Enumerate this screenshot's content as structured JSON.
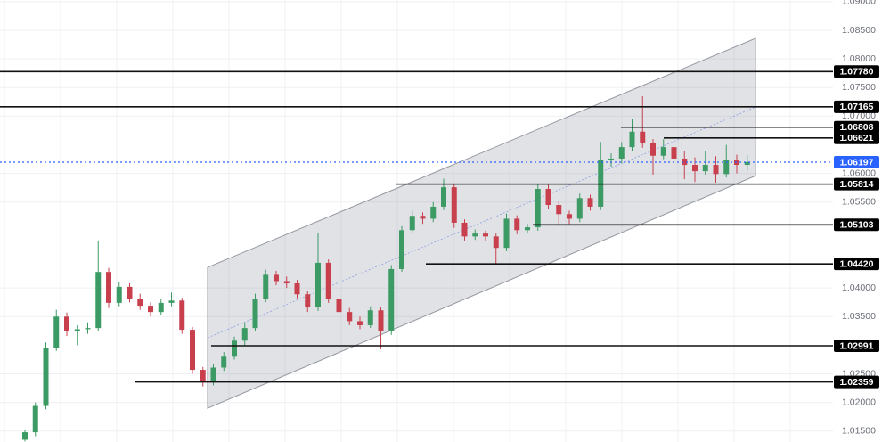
{
  "chart_data": {
    "type": "candlestick",
    "ylim": [
      1.0131,
      1.0903
    ],
    "yticks": [
      {
        "value": 1.09,
        "label": "1.09000"
      },
      {
        "value": 1.085,
        "label": "1.08500"
      },
      {
        "value": 1.08,
        "label": "1.08000"
      },
      {
        "value": 1.075,
        "label": "1.07500"
      },
      {
        "value": 1.07,
        "label": "1.07000"
      },
      {
        "value": 1.06,
        "label": "1.06000"
      },
      {
        "value": 1.055,
        "label": "1.05500"
      },
      {
        "value": 1.04,
        "label": "1.04000"
      },
      {
        "value": 1.035,
        "label": "1.03500"
      },
      {
        "value": 1.025,
        "label": "1.02500"
      },
      {
        "value": 1.02,
        "label": "1.02000"
      },
      {
        "value": 1.015,
        "label": "1.01500"
      }
    ],
    "grid": true,
    "up_color": "#3c9a64",
    "down_color": "#c8404e",
    "ohlc": [
      [
        1.0135,
        1.0152,
        1.0132,
        1.0148
      ],
      [
        1.0148,
        1.02,
        1.0141,
        1.0194
      ],
      [
        1.0194,
        1.0305,
        1.0188,
        1.0296
      ],
      [
        1.0296,
        1.0362,
        1.029,
        1.035
      ],
      [
        1.035,
        1.0357,
        1.0316,
        1.0324
      ],
      [
        1.0324,
        1.0335,
        1.03,
        1.0328
      ],
      [
        1.0328,
        1.034,
        1.032,
        1.033
      ],
      [
        1.033,
        1.0483,
        1.0325,
        1.0428
      ],
      [
        1.0428,
        1.0435,
        1.0365,
        1.0374
      ],
      [
        1.0374,
        1.041,
        1.0368,
        1.0402
      ],
      [
        1.0402,
        1.0408,
        1.0375,
        1.0381
      ],
      [
        1.0381,
        1.039,
        1.0362,
        1.0369
      ],
      [
        1.0369,
        1.0375,
        1.035,
        1.0358
      ],
      [
        1.0358,
        1.038,
        1.0352,
        1.0374
      ],
      [
        1.0374,
        1.0392,
        1.0368,
        1.0378
      ],
      [
        1.0378,
        1.0383,
        1.032,
        1.0327
      ],
      [
        1.0327,
        1.0332,
        1.025,
        1.0257
      ],
      [
        1.0257,
        1.0262,
        1.0228,
        1.0236
      ],
      [
        1.0236,
        1.0268,
        1.023,
        1.0261
      ],
      [
        1.0261,
        1.0288,
        1.0255,
        1.028
      ],
      [
        1.028,
        1.0315,
        1.0275,
        1.0308
      ],
      [
        1.0308,
        1.0338,
        1.03,
        1.033
      ],
      [
        1.033,
        1.039,
        1.0325,
        1.0381
      ],
      [
        1.0381,
        1.0432,
        1.0375,
        1.0423
      ],
      [
        1.0423,
        1.043,
        1.0405,
        1.0412
      ],
      [
        1.0412,
        1.042,
        1.04,
        1.0408
      ],
      [
        1.0408,
        1.0414,
        1.0382,
        1.0389
      ],
      [
        1.0389,
        1.0395,
        1.0358,
        1.0366
      ],
      [
        1.0366,
        1.0497,
        1.036,
        1.0444
      ],
      [
        1.0444,
        1.045,
        1.0374,
        1.0381
      ],
      [
        1.0381,
        1.0388,
        1.035,
        1.0358
      ],
      [
        1.0358,
        1.0365,
        1.0335,
        1.0342
      ],
      [
        1.0342,
        1.035,
        1.0328,
        1.0335
      ],
      [
        1.0335,
        1.0368,
        1.033,
        1.0361
      ],
      [
        1.0361,
        1.0367,
        1.0293,
        1.0324
      ],
      [
        1.0324,
        1.044,
        1.0318,
        1.0433
      ],
      [
        1.0433,
        1.0508,
        1.0428,
        1.0501
      ],
      [
        1.0501,
        1.0535,
        1.0495,
        1.0526
      ],
      [
        1.0526,
        1.0532,
        1.0512,
        1.0521
      ],
      [
        1.0521,
        1.055,
        1.0515,
        1.0542
      ],
      [
        1.0542,
        1.0591,
        1.0536,
        1.0576
      ],
      [
        1.0576,
        1.0582,
        1.0505,
        1.0514
      ],
      [
        1.0514,
        1.052,
        1.0483,
        1.049
      ],
      [
        1.049,
        1.0502,
        1.0484,
        1.0495
      ],
      [
        1.0495,
        1.05,
        1.0482,
        1.049
      ],
      [
        1.049,
        1.0495,
        1.0442,
        1.047
      ],
      [
        1.047,
        1.053,
        1.0464,
        1.0521
      ],
      [
        1.0521,
        1.0527,
        1.0494,
        1.0501
      ],
      [
        1.0501,
        1.0512,
        1.0495,
        1.0506
      ],
      [
        1.0506,
        1.0582,
        1.05,
        1.0573
      ],
      [
        1.0573,
        1.058,
        1.0538,
        1.0545
      ],
      [
        1.0545,
        1.0552,
        1.051,
        1.0529
      ],
      [
        1.0529,
        1.0535,
        1.0512,
        1.0521
      ],
      [
        1.0521,
        1.0565,
        1.0515,
        1.0557
      ],
      [
        1.0557,
        1.0563,
        1.0535,
        1.0542
      ],
      [
        1.0542,
        1.0655,
        1.0536,
        1.0623
      ],
      [
        1.0623,
        1.0635,
        1.0612,
        1.0626
      ],
      [
        1.0626,
        1.0655,
        1.0618,
        1.0646
      ],
      [
        1.0646,
        1.0695,
        1.064,
        1.0673
      ],
      [
        1.0673,
        1.0735,
        1.0645,
        1.0654
      ],
      [
        1.0654,
        1.066,
        1.0598,
        1.0631
      ],
      [
        1.0631,
        1.066,
        1.0625,
        1.0646
      ],
      [
        1.0646,
        1.0652,
        1.0602,
        1.0626
      ],
      [
        1.0626,
        1.064,
        1.059,
        1.0615
      ],
      [
        1.0615,
        1.0628,
        1.0585,
        1.0604
      ],
      [
        1.0604,
        1.064,
        1.0598,
        1.0615
      ],
      [
        1.0615,
        1.063,
        1.0584,
        1.0599
      ],
      [
        1.0599,
        1.065,
        1.0593,
        1.0623
      ],
      [
        1.0623,
        1.0633,
        1.06,
        1.0615
      ],
      [
        1.0615,
        1.0632,
        1.0605,
        1.062
      ]
    ],
    "channel": {
      "upper": [
        1.0436,
        1.0836
      ],
      "lower": [
        1.019,
        1.0596
      ]
    },
    "levels": [
      {
        "value": 1.0778,
        "label": "1.07780"
      },
      {
        "value": 1.07165,
        "label": "1.07165"
      },
      {
        "value": 1.06808,
        "label": "1.06808"
      },
      {
        "value": 1.06621,
        "label": "1.06621"
      },
      {
        "value": 1.05814,
        "label": "1.05814"
      },
      {
        "value": 1.05103,
        "label": "1.05103"
      },
      {
        "value": 1.0442,
        "label": "1.04420"
      },
      {
        "value": 1.02991,
        "label": "1.02991"
      },
      {
        "value": 1.02359,
        "label": "1.02359"
      }
    ],
    "last_price": {
      "value": 1.06197,
      "label": "1.06197",
      "color": "#2962ff"
    }
  }
}
